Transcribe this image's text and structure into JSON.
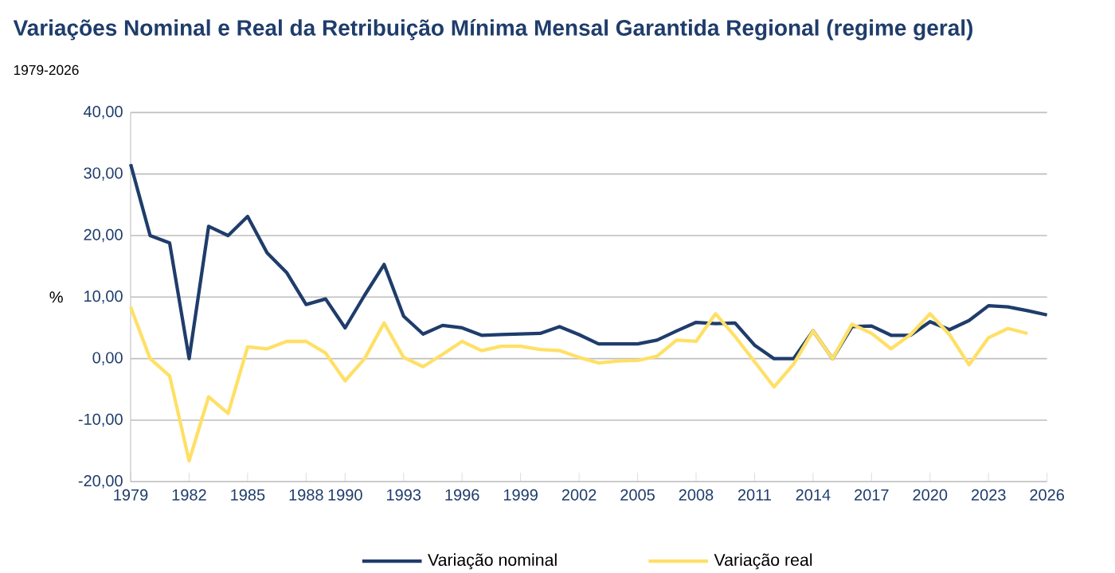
{
  "chart_data": {
    "type": "line",
    "title": "Variações Nominal e Real da Retribuição Mínima Mensal Garantida Regional (regime geral)",
    "subtitle": "1979-2026",
    "ylabel": "%",
    "x": [
      1979,
      1980,
      1981,
      1982,
      1983,
      1984,
      1985,
      1986,
      1987,
      1988,
      1989,
      1990,
      1991,
      1992,
      1993,
      1994,
      1995,
      1996,
      1997,
      1998,
      1999,
      2000,
      2001,
      2002,
      2003,
      2004,
      2005,
      2006,
      2007,
      2008,
      2009,
      2010,
      2011,
      2012,
      2013,
      2014,
      2015,
      2016,
      2017,
      2018,
      2019,
      2020,
      2021,
      2022,
      2023,
      2024,
      2025,
      2026
    ],
    "series": [
      {
        "name": "Variação nominal",
        "color": "#1f3d6b",
        "values": [
          31.6,
          20.0,
          18.8,
          0,
          21.5,
          20.0,
          23.1,
          17.2,
          14.0,
          8.8,
          9.7,
          5.0,
          10.3,
          15.3,
          6.9,
          4.0,
          5.4,
          5.0,
          3.8,
          3.9,
          4.0,
          4.1,
          5.2,
          3.9,
          2.4,
          2.4,
          2.4,
          3.0,
          4.5,
          5.9,
          5.7,
          5.8,
          2.2,
          0,
          0,
          4.5,
          0,
          5.2,
          5.3,
          3.8,
          3.8,
          6.0,
          4.7,
          6.2,
          8.6,
          8.4,
          7.8,
          7.1
        ]
      },
      {
        "name": "Variação real",
        "color": "#ffe066",
        "values": [
          8.4,
          0,
          -2.8,
          -16.6,
          -6.2,
          -8.9,
          1.9,
          1.6,
          2.8,
          2.8,
          0.9,
          -3.6,
          0,
          5.8,
          0.2,
          -1.3,
          0.7,
          2.8,
          1.3,
          2.0,
          2.0,
          1.5,
          1.3,
          0.2,
          -0.7,
          -0.4,
          -0.3,
          0.4,
          3.0,
          2.8,
          7.3,
          3.6,
          -0.5,
          -4.6,
          -0.9,
          4.5,
          0,
          5.6,
          4.1,
          1.6,
          3.9,
          7.3,
          3.9,
          -1.0,
          3.4,
          4.9,
          4.1,
          null
        ]
      }
    ],
    "xlim": [
      1979,
      2026
    ],
    "xticks": [
      1979,
      1982,
      1985,
      1988,
      1990,
      1993,
      1996,
      1999,
      2002,
      2005,
      2008,
      2011,
      2014,
      2017,
      2020,
      2023,
      2026
    ],
    "ylim": [
      -20,
      40
    ],
    "yticks": [
      {
        "value": -20,
        "label": "-20,00"
      },
      {
        "value": -10,
        "label": "-10,00"
      },
      {
        "value": 0,
        "label": "0,00"
      },
      {
        "value": 10,
        "label": "10,00"
      },
      {
        "value": 20,
        "label": "20,00"
      },
      {
        "value": 30,
        "label": "30,00"
      },
      {
        "value": 40,
        "label": "40,00"
      }
    ],
    "grid": "y",
    "legend": "bottom",
    "marker": "none",
    "line_style": "solid"
  }
}
